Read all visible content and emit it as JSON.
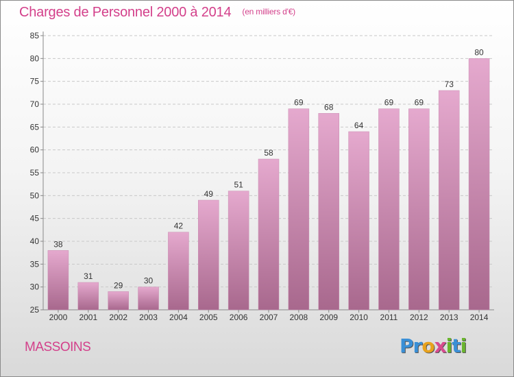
{
  "header": {
    "title": "Charges de Personnel 2000 à 2014",
    "subtitle": "(en milliers d'€)"
  },
  "footer": {
    "commune": "MASSOINS",
    "logo_letters": [
      "P",
      "r",
      "o",
      "x",
      "i",
      "t",
      "i"
    ],
    "logo_colors": [
      "#3a8fd6",
      "#3a8fd6",
      "#e8a21c",
      "#d84a8f",
      "#6ab42e",
      "#3a8fd6",
      "#6ab42e"
    ]
  },
  "colors": {
    "accent": "#d33f8a",
    "bar_top": "#e5a9ce",
    "bar_bottom": "#a8688d"
  },
  "chart_data": {
    "type": "bar",
    "title": "Charges de Personnel 2000 à 2014",
    "subtitle": "(en milliers d'€)",
    "categories": [
      "2000",
      "2001",
      "2002",
      "2003",
      "2004",
      "2005",
      "2006",
      "2007",
      "2008",
      "2009",
      "2010",
      "2011",
      "2012",
      "2013",
      "2014"
    ],
    "values": [
      38,
      31,
      29,
      30,
      42,
      49,
      51,
      58,
      69,
      68,
      64,
      69,
      69,
      73,
      80
    ],
    "ylim": [
      25,
      85
    ],
    "yticks": [
      25,
      30,
      35,
      40,
      45,
      50,
      55,
      60,
      65,
      70,
      75,
      80,
      85
    ],
    "grid": true,
    "legend": "none"
  }
}
